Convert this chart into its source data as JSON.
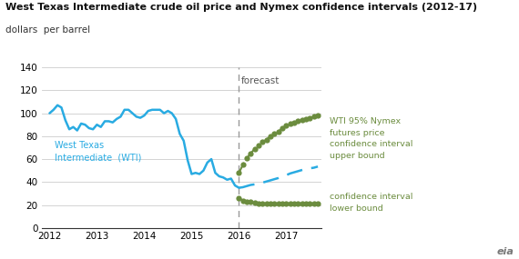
{
  "title": "West Texas Intermediate crude oil price and Nymex confidence intervals (2012-17)",
  "subtitle": "dollars  per barrel",
  "forecast_label": "forecast",
  "wti_label": "West Texas\nIntermediate  (WTI)",
  "upper_label": "WTI 95% Nymex\nfutures price\nconfidence interval\nupper bound",
  "lower_label": "confidence interval\nlower bound",
  "wti_color": "#29ABE2",
  "upper_color": "#6B8C3E",
  "lower_color": "#6B8C3E",
  "forecast_line_color": "#999999",
  "forecast_label_color": "#555555",
  "bg_color": "#FFFFFF",
  "grid_color": "#CCCCCC",
  "forecast_line_x": 2016.0,
  "ylim": [
    0,
    140
  ],
  "yticks": [
    0,
    20,
    40,
    60,
    80,
    100,
    120,
    140
  ],
  "xlim": [
    2011.83,
    2017.75
  ],
  "xticks": [
    2012,
    2013,
    2014,
    2015,
    2016,
    2017
  ],
  "wti_x": [
    2012.0,
    2012.083,
    2012.167,
    2012.25,
    2012.333,
    2012.417,
    2012.5,
    2012.583,
    2012.667,
    2012.75,
    2012.833,
    2012.917,
    2013.0,
    2013.083,
    2013.167,
    2013.25,
    2013.333,
    2013.417,
    2013.5,
    2013.583,
    2013.667,
    2013.75,
    2013.833,
    2013.917,
    2014.0,
    2014.083,
    2014.167,
    2014.25,
    2014.333,
    2014.417,
    2014.5,
    2014.583,
    2014.667,
    2014.75,
    2014.833,
    2014.917,
    2015.0,
    2015.083,
    2015.167,
    2015.25,
    2015.333,
    2015.417,
    2015.5,
    2015.583,
    2015.667,
    2015.75,
    2015.833,
    2015.917,
    2016.0
  ],
  "wti_y": [
    100,
    103,
    107,
    105,
    94,
    86,
    88,
    85,
    91,
    90,
    87,
    86,
    90,
    88,
    93,
    93,
    92,
    95,
    97,
    103,
    103,
    100,
    97,
    96,
    98,
    102,
    103,
    103,
    103,
    100,
    102,
    100,
    95,
    82,
    76,
    59,
    47,
    48,
    47,
    50,
    57,
    60,
    48,
    45,
    44,
    42,
    43,
    37,
    35
  ],
  "forecast_x": [
    2016.0,
    2016.083,
    2016.167,
    2016.25,
    2016.333,
    2016.417,
    2016.5,
    2016.583,
    2016.667,
    2016.75,
    2016.833,
    2016.917,
    2017.0,
    2017.083,
    2017.167,
    2017.25,
    2017.333,
    2017.417,
    2017.5,
    2017.583,
    2017.667
  ],
  "forecast_y": [
    35,
    35.5,
    36.5,
    37.5,
    38,
    38.5,
    39.5,
    40.5,
    41.5,
    42.5,
    43.5,
    45,
    46,
    47.5,
    48.5,
    49.5,
    50.5,
    51.5,
    52,
    52.5,
    53.5
  ],
  "upper_x": [
    2016.0,
    2016.083,
    2016.167,
    2016.25,
    2016.333,
    2016.417,
    2016.5,
    2016.583,
    2016.667,
    2016.75,
    2016.833,
    2016.917,
    2017.0,
    2017.083,
    2017.167,
    2017.25,
    2017.333,
    2017.417,
    2017.5,
    2017.583,
    2017.667
  ],
  "upper_y": [
    48,
    55,
    61,
    65,
    69,
    72,
    75,
    77,
    80,
    82,
    84,
    87,
    89,
    91,
    92,
    93,
    94,
    95,
    96,
    97,
    98
  ],
  "lower_x": [
    2016.0,
    2016.083,
    2016.167,
    2016.25,
    2016.333,
    2016.417,
    2016.5,
    2016.583,
    2016.667,
    2016.75,
    2016.833,
    2016.917,
    2017.0,
    2017.083,
    2017.167,
    2017.25,
    2017.333,
    2017.417,
    2017.5,
    2017.583,
    2017.667
  ],
  "lower_y": [
    26,
    24,
    23,
    22.5,
    22,
    21.5,
    21.5,
    21,
    21,
    21,
    21,
    21,
    21,
    21,
    21,
    21,
    21,
    21,
    21,
    21,
    21
  ]
}
